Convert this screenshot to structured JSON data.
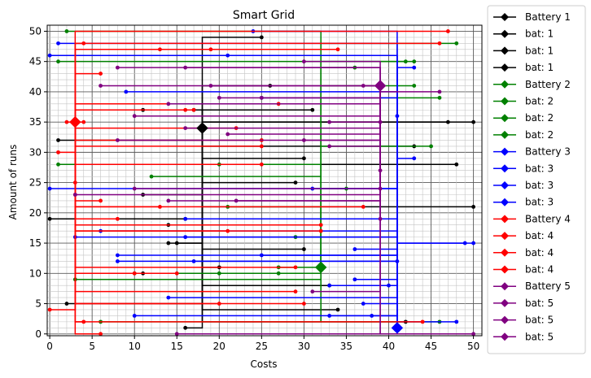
{
  "chart_data": {
    "type": "scatter",
    "title": "Smart Grid",
    "xlabel": "Costs",
    "ylabel": "Amount of runs",
    "xlim": [
      -0.3,
      51
    ],
    "ylim": [
      -0.3,
      51
    ],
    "x_ticks": [
      0,
      5,
      10,
      15,
      20,
      25,
      30,
      35,
      40,
      45,
      50
    ],
    "y_ticks": [
      0,
      5,
      10,
      15,
      20,
      25,
      30,
      35,
      40,
      45,
      50
    ],
    "grid": "major and minor",
    "legend": "outside-right",
    "legend_entries": [
      {
        "label": "Battery 1",
        "color": "#000000"
      },
      {
        "label": "bat: 1",
        "color": "#000000"
      },
      {
        "label": "bat: 1",
        "color": "#000000"
      },
      {
        "label": "bat: 1",
        "color": "#000000"
      },
      {
        "label": "Battery 2",
        "color": "#008000"
      },
      {
        "label": "bat: 2",
        "color": "#008000"
      },
      {
        "label": "bat: 2",
        "color": "#008000"
      },
      {
        "label": "bat: 2",
        "color": "#008000"
      },
      {
        "label": "Battery 3",
        "color": "#0000ff"
      },
      {
        "label": "bat: 3",
        "color": "#0000ff"
      },
      {
        "label": "bat: 3",
        "color": "#0000ff"
      },
      {
        "label": "bat: 3",
        "color": "#0000ff"
      },
      {
        "label": "Battery 4",
        "color": "#ff0000"
      },
      {
        "label": "bat: 4",
        "color": "#ff0000"
      },
      {
        "label": "bat: 4",
        "color": "#ff0000"
      },
      {
        "label": "bat: 4",
        "color": "#ff0000"
      },
      {
        "label": "Battery 5",
        "color": "#800080"
      },
      {
        "label": "bat: 5",
        "color": "#800080"
      },
      {
        "label": "bat: 5",
        "color": "#800080"
      },
      {
        "label": "bat: 5",
        "color": "#800080"
      }
    ],
    "batteries": [
      {
        "name": "Battery 1",
        "color": "#000000",
        "x": 18,
        "y": 34,
        "houses": [
          [
            25,
            49
          ],
          [
            26,
            41
          ],
          [
            17,
            37
          ],
          [
            31,
            37
          ],
          [
            11,
            37
          ],
          [
            50,
            35
          ],
          [
            47,
            35
          ],
          [
            1,
            32
          ],
          [
            43,
            31
          ],
          [
            48,
            28
          ],
          [
            30,
            29
          ],
          [
            29,
            25
          ],
          [
            50,
            21
          ],
          [
            11,
            23
          ],
          [
            0,
            19
          ],
          [
            16,
            19
          ],
          [
            14,
            18
          ],
          [
            14,
            15
          ],
          [
            15,
            15
          ],
          [
            42,
            2
          ],
          [
            2,
            5
          ],
          [
            16,
            1
          ],
          [
            30,
            14
          ],
          [
            34,
            4
          ],
          [
            20,
            11
          ],
          [
            11,
            10
          ],
          [
            33,
            8
          ]
        ]
      },
      {
        "name": "Battery 2",
        "color": "#008000",
        "x": 32,
        "y": 11,
        "houses": [
          [
            2,
            50
          ],
          [
            48,
            48
          ],
          [
            1,
            45
          ],
          [
            43,
            45
          ],
          [
            42,
            45
          ],
          [
            36,
            44
          ],
          [
            43,
            41
          ],
          [
            46,
            39
          ],
          [
            1,
            28
          ],
          [
            20,
            28
          ],
          [
            45,
            31
          ],
          [
            12,
            26
          ],
          [
            35,
            24
          ],
          [
            21,
            21
          ],
          [
            29,
            16
          ],
          [
            27,
            11
          ],
          [
            20,
            10
          ],
          [
            27,
            10
          ],
          [
            10,
            10
          ],
          [
            3,
            9
          ],
          [
            6,
            2
          ],
          [
            46,
            2
          ]
        ]
      },
      {
        "name": "Battery 3",
        "color": "#0000ff",
        "x": 41,
        "y": 1,
        "houses": [
          [
            24,
            50
          ],
          [
            1,
            48
          ],
          [
            0,
            46
          ],
          [
            21,
            46
          ],
          [
            43,
            44
          ],
          [
            9,
            40
          ],
          [
            25,
            39
          ],
          [
            41,
            36
          ],
          [
            43,
            29
          ],
          [
            31,
            24
          ],
          [
            0,
            24
          ],
          [
            16,
            19
          ],
          [
            6,
            17
          ],
          [
            3,
            16
          ],
          [
            16,
            16
          ],
          [
            50,
            15
          ],
          [
            49,
            15
          ],
          [
            36,
            14
          ],
          [
            25,
            13
          ],
          [
            41,
            12
          ],
          [
            8,
            13
          ],
          [
            8,
            12
          ],
          [
            17,
            12
          ],
          [
            36,
            9
          ],
          [
            33,
            8
          ],
          [
            40,
            8
          ],
          [
            48,
            2
          ],
          [
            14,
            6
          ],
          [
            37,
            5
          ],
          [
            38,
            3
          ],
          [
            33,
            3
          ],
          [
            10,
            3
          ]
        ]
      },
      {
        "name": "Battery 4",
        "color": "#ff0000",
        "x": 3,
        "y": 35,
        "houses": [
          [
            47,
            50
          ],
          [
            4,
            48
          ],
          [
            46,
            48
          ],
          [
            13,
            47
          ],
          [
            19,
            47
          ],
          [
            34,
            47
          ],
          [
            6,
            43
          ],
          [
            27,
            38
          ],
          [
            16,
            37
          ],
          [
            17,
            37
          ],
          [
            4,
            35
          ],
          [
            2,
            35
          ],
          [
            22,
            34
          ],
          [
            25,
            32
          ],
          [
            25,
            31
          ],
          [
            1,
            30
          ],
          [
            25,
            28
          ],
          [
            3,
            25
          ],
          [
            3,
            23
          ],
          [
            6,
            22
          ],
          [
            37,
            21
          ],
          [
            13,
            21
          ],
          [
            8,
            19
          ],
          [
            21,
            17
          ],
          [
            32,
            18
          ],
          [
            32,
            17
          ],
          [
            10,
            10
          ],
          [
            15,
            10
          ],
          [
            29,
            11
          ],
          [
            29,
            7
          ],
          [
            30,
            5
          ],
          [
            20,
            5
          ],
          [
            4,
            2
          ],
          [
            44,
            2
          ],
          [
            6,
            0
          ],
          [
            0,
            4
          ]
        ]
      },
      {
        "name": "Battery 5",
        "color": "#800080",
        "x": 39,
        "y": 41,
        "houses": [
          [
            30,
            45
          ],
          [
            16,
            44
          ],
          [
            8,
            44
          ],
          [
            19,
            41
          ],
          [
            6,
            41
          ],
          [
            37,
            41
          ],
          [
            46,
            40
          ],
          [
            20,
            39
          ],
          [
            25,
            39
          ],
          [
            14,
            38
          ],
          [
            10,
            36
          ],
          [
            33,
            35
          ],
          [
            39,
            35
          ],
          [
            16,
            34
          ],
          [
            21,
            33
          ],
          [
            8,
            32
          ],
          [
            30,
            32
          ],
          [
            33,
            31
          ],
          [
            39,
            27
          ],
          [
            10,
            24
          ],
          [
            39,
            24
          ],
          [
            3,
            23
          ],
          [
            22,
            22
          ],
          [
            14,
            22
          ],
          [
            31,
            7
          ],
          [
            15,
            0
          ],
          [
            50,
            0
          ],
          [
            39,
            19
          ]
        ]
      }
    ]
  }
}
